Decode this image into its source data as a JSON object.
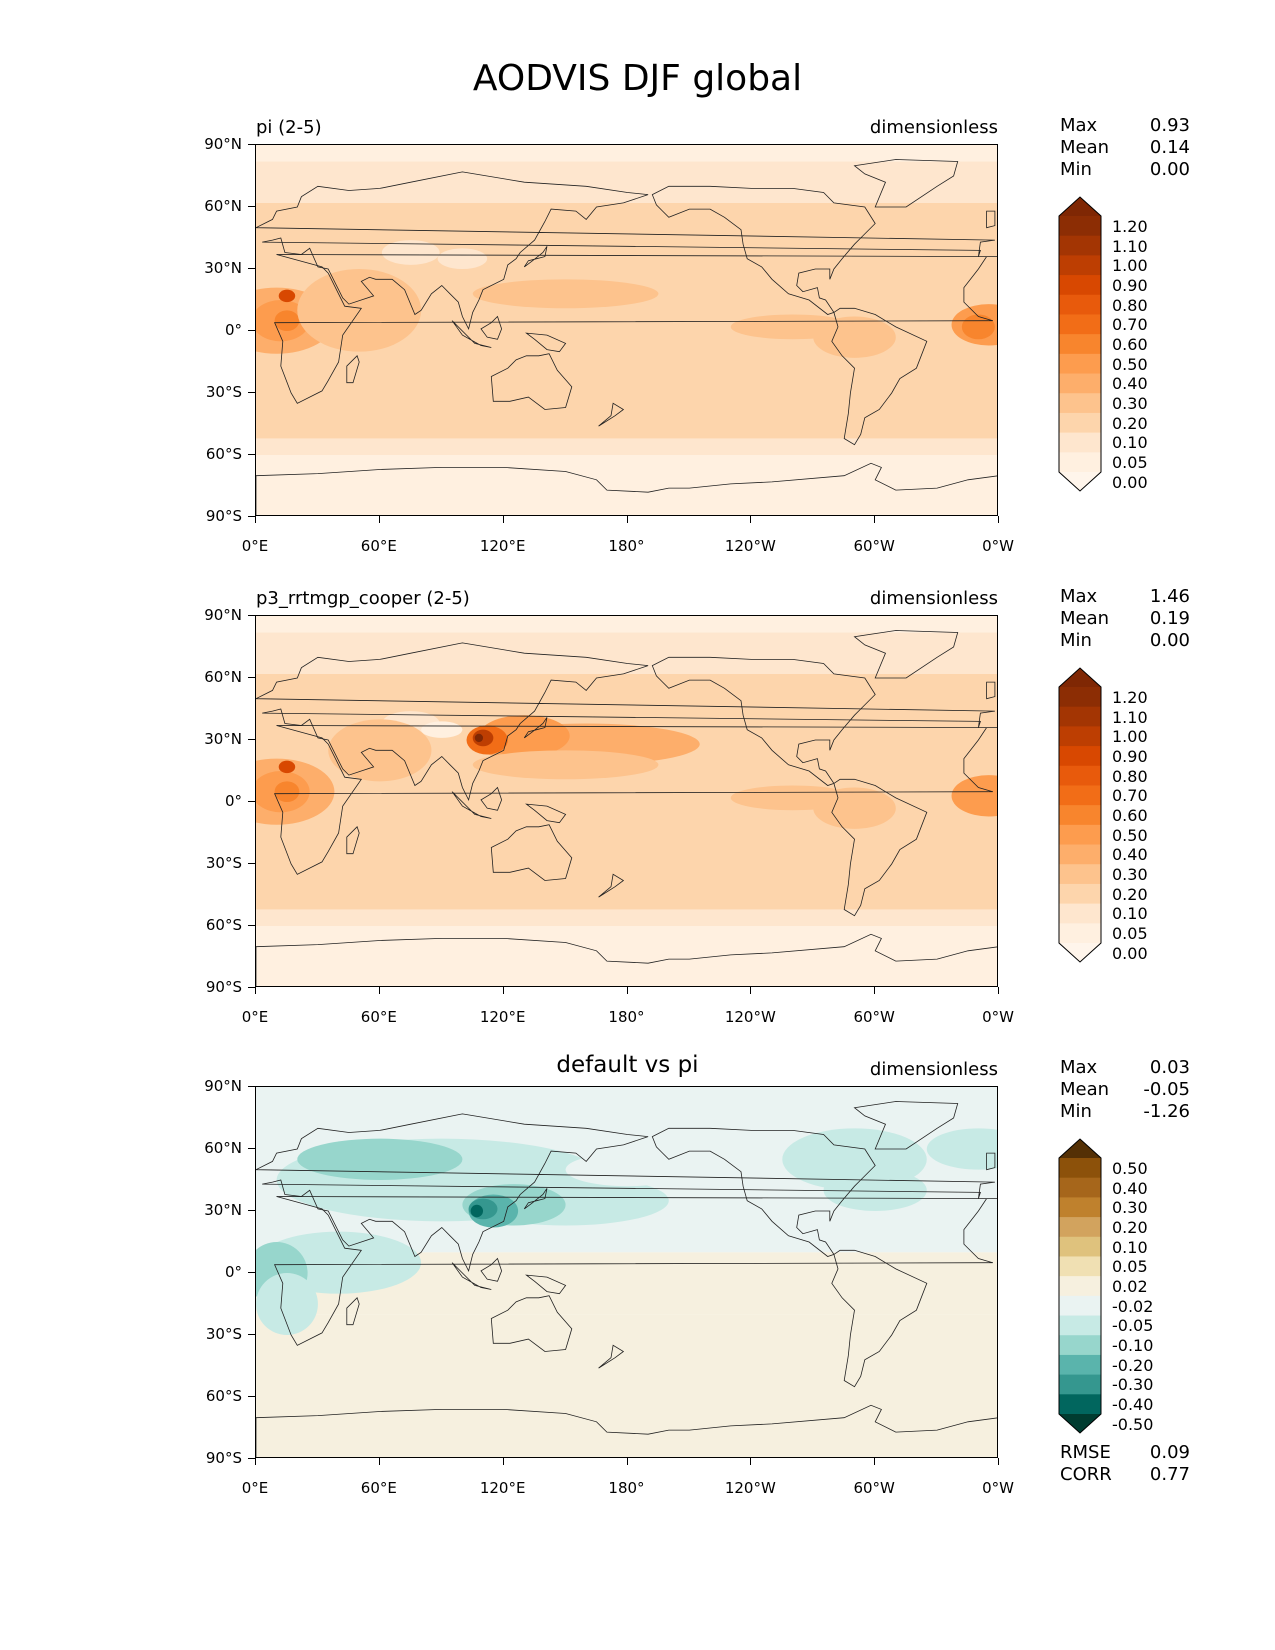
{
  "title": "AODVIS DJF global",
  "lat_ticks": [
    "90°N",
    "60°N",
    "30°N",
    "0°",
    "30°S",
    "60°S",
    "90°S"
  ],
  "lon_ticks": [
    "0°E",
    "60°E",
    "120°E",
    "180°",
    "120°W",
    "60°W",
    "0°W"
  ],
  "panels": [
    {
      "name": "pi (2-5)",
      "units": "dimensionless",
      "stats": [
        {
          "k": "Max",
          "v": "0.93"
        },
        {
          "k": "Mean",
          "v": "0.14"
        },
        {
          "k": "Min",
          "v": "0.00"
        }
      ],
      "colorbar": {
        "labels": [
          "1.20",
          "1.10",
          "1.00",
          "0.90",
          "0.80",
          "0.70",
          "0.60",
          "0.50",
          "0.40",
          "0.30",
          "0.20",
          "0.10",
          "0.05",
          "0.00"
        ],
        "colors": [
          "#7f2704",
          "#8c2d04",
          "#a33503",
          "#bd3e02",
          "#d84801",
          "#e85a0c",
          "#f26d17",
          "#f8852d",
          "#fd9c4e",
          "#fdae6b",
          "#fdc38d",
          "#fdd5ac",
          "#fee6ce",
          "#fff0e0",
          "#fff5eb"
        ]
      }
    },
    {
      "name": "p3_rrtmgp_cooper (2-5)",
      "units": "dimensionless",
      "stats": [
        {
          "k": "Max",
          "v": "1.46"
        },
        {
          "k": "Mean",
          "v": "0.19"
        },
        {
          "k": "Min",
          "v": "0.00"
        }
      ],
      "colorbar": {
        "labels": [
          "1.20",
          "1.10",
          "1.00",
          "0.90",
          "0.80",
          "0.70",
          "0.60",
          "0.50",
          "0.40",
          "0.30",
          "0.20",
          "0.10",
          "0.05",
          "0.00"
        ],
        "colors": [
          "#7f2704",
          "#8c2d04",
          "#a33503",
          "#bd3e02",
          "#d84801",
          "#e85a0c",
          "#f26d17",
          "#f8852d",
          "#fd9c4e",
          "#fdae6b",
          "#fdc38d",
          "#fdd5ac",
          "#fee6ce",
          "#fff0e0",
          "#fff5eb"
        ]
      }
    },
    {
      "name": "default vs pi",
      "units": "dimensionless",
      "stats": [
        {
          "k": "Max",
          "v": "0.03"
        },
        {
          "k": "Mean",
          "v": "-0.05"
        },
        {
          "k": "Min",
          "v": "-1.26"
        }
      ],
      "extra_stats": [
        {
          "k": "RMSE",
          "v": "0.09"
        },
        {
          "k": "CORR",
          "v": "0.77"
        }
      ],
      "colorbar": {
        "labels": [
          "0.50",
          "0.40",
          "0.30",
          "0.20",
          "0.10",
          "0.05",
          "0.02",
          "-0.02",
          "-0.05",
          "-0.10",
          "-0.20",
          "-0.30",
          "-0.40",
          "-0.50"
        ],
        "colors": [
          "#543005",
          "#8c510a",
          "#a6661b",
          "#bf812d",
          "#d2a35e",
          "#dfc27d",
          "#f0e0b3",
          "#f6f0df",
          "#eaf3f2",
          "#c7eae5",
          "#97d6cc",
          "#5ab4ac",
          "#35978f",
          "#01665e",
          "#003c30"
        ]
      }
    }
  ]
}
